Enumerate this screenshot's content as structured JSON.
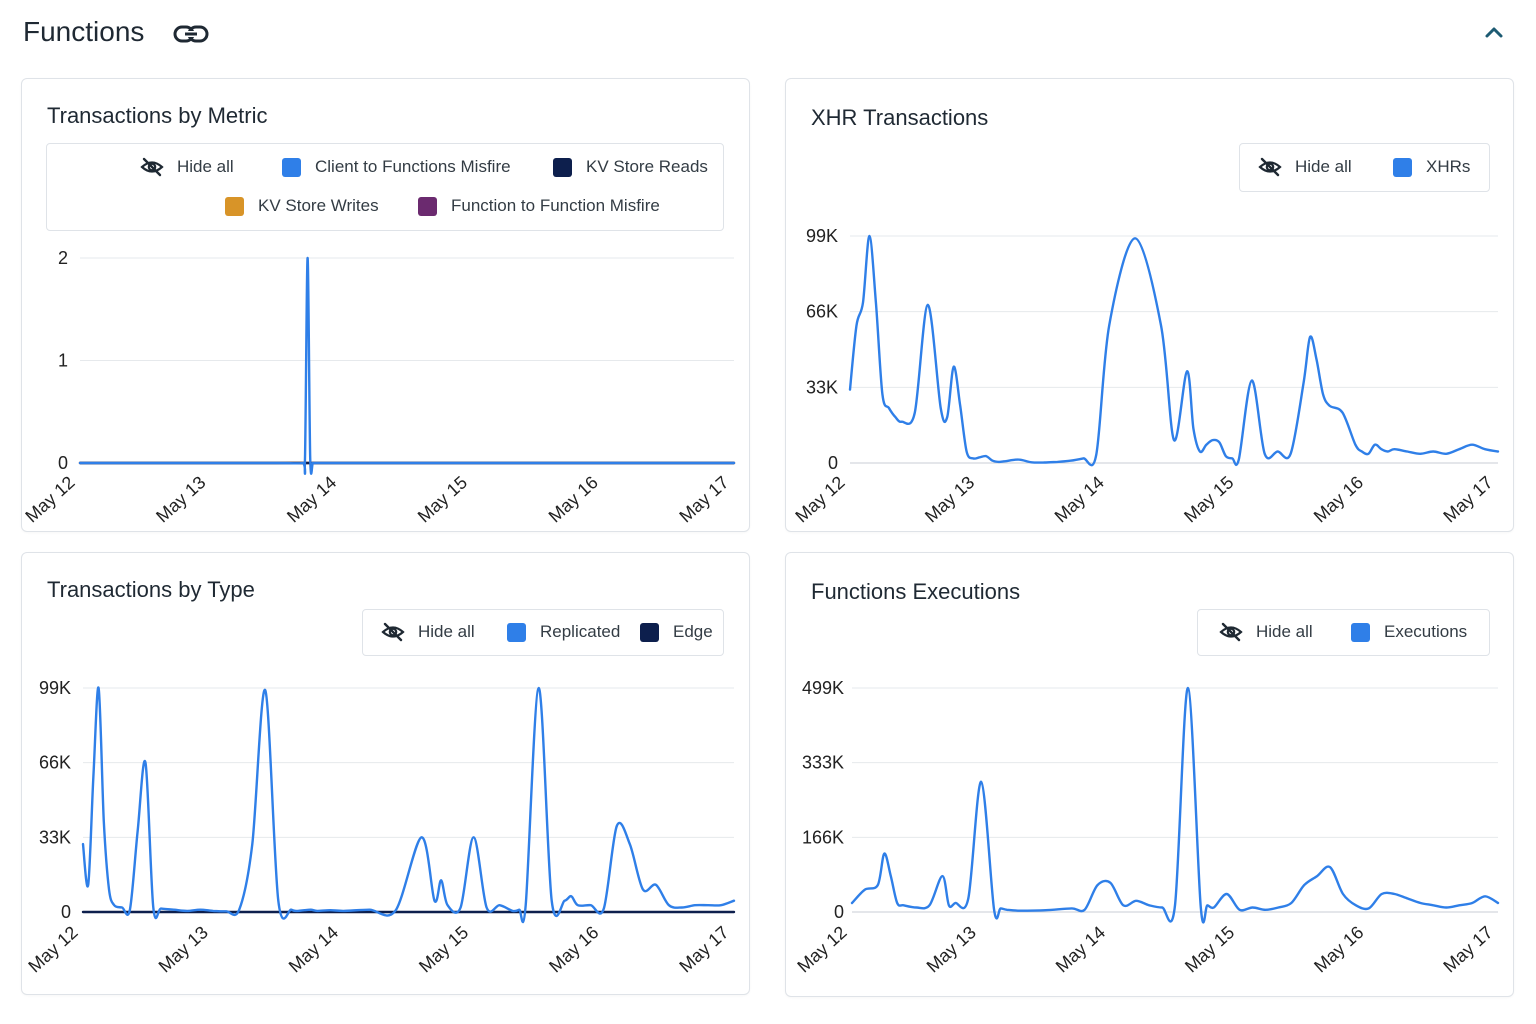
{
  "header": {
    "title": "Functions",
    "link_icon": "link-icon",
    "collapse_icon": "chevron-up-icon"
  },
  "colors": {
    "blue": "#2f7fe8",
    "navy": "#0d1f4d",
    "orange": "#d89428",
    "purple": "#6b2a6f",
    "accent": "#1d5b73"
  },
  "cards": {
    "metric": {
      "title": "Transactions by Metric",
      "legend": {
        "hide_all": "Hide all",
        "items": [
          "Client to Functions Misfire",
          "KV Store Reads",
          "KV Store Writes",
          "Function to Function Misfire"
        ]
      }
    },
    "xhr": {
      "title": "XHR Transactions",
      "legend": {
        "hide_all": "Hide all",
        "items": [
          "XHRs"
        ]
      }
    },
    "type": {
      "title": "Transactions by Type",
      "legend": {
        "hide_all": "Hide all",
        "items": [
          "Replicated",
          "Edge"
        ]
      }
    },
    "exec": {
      "title": "Functions Executions",
      "legend": {
        "hide_all": "Hide all",
        "items": [
          "Executions"
        ]
      }
    }
  },
  "chart_data": [
    {
      "id": "metric",
      "type": "line",
      "title": "Transactions by Metric",
      "x_tick_labels": [
        "May 12",
        "May 13",
        "May 14",
        "May 15",
        "May 16",
        "May 17"
      ],
      "y_tick_labels": [
        "0",
        "1",
        "2"
      ],
      "ylim": [
        0,
        2
      ],
      "grid": true,
      "legend_position": "top",
      "x": [
        12.0,
        12.5,
        13.0,
        13.5,
        13.7,
        13.72,
        13.74,
        13.76,
        13.78,
        13.8,
        14.0,
        14.5,
        15.0,
        15.5,
        16.0,
        16.5,
        17.0
      ],
      "series": [
        {
          "name": "Client to Functions Misfire",
          "color": "#2f7fe8",
          "values": [
            0,
            0,
            0,
            0,
            0,
            0.05,
            2.0,
            0.05,
            0,
            0,
            0,
            0,
            0,
            0,
            0,
            0,
            0
          ]
        },
        {
          "name": "KV Store Reads",
          "color": "#0d1f4d",
          "values": [
            0,
            0,
            0,
            0,
            0,
            0,
            0,
            0,
            0,
            0,
            0,
            0,
            0,
            0,
            0,
            0,
            0
          ]
        },
        {
          "name": "KV Store Writes",
          "color": "#d89428",
          "values": [
            0,
            0,
            0,
            0,
            0,
            0,
            0,
            0,
            0,
            0,
            0,
            0,
            0,
            0,
            0,
            0,
            0
          ]
        },
        {
          "name": "Function to Function Misfire",
          "color": "#6b2a6f",
          "values": [
            0,
            0,
            0,
            0,
            0,
            0,
            0,
            0,
            0,
            0,
            0,
            0,
            0,
            0,
            0,
            0,
            0
          ]
        }
      ]
    },
    {
      "id": "xhr",
      "type": "line",
      "title": "XHR Transactions",
      "x_tick_labels": [
        "May 12",
        "May 13",
        "May 14",
        "May 15",
        "May 16",
        "May 17"
      ],
      "y_tick_labels": [
        "0",
        "33K",
        "66K",
        "99K"
      ],
      "ylim": [
        0,
        99000
      ],
      "grid": true,
      "legend_position": "top-right",
      "x": [
        12.0,
        12.05,
        12.1,
        12.15,
        12.2,
        12.25,
        12.3,
        12.35,
        12.4,
        12.5,
        12.6,
        12.7,
        12.75,
        12.8,
        12.85,
        12.9,
        12.95,
        13.0,
        13.05,
        13.1,
        13.15,
        13.2,
        13.3,
        13.4,
        13.5,
        13.6,
        13.7,
        13.8,
        13.9,
        14.0,
        14.2,
        14.4,
        14.5,
        14.6,
        14.65,
        14.7,
        14.75,
        14.8,
        14.85,
        14.9,
        14.95,
        15.0,
        15.1,
        15.2,
        15.3,
        15.4,
        15.5,
        15.55,
        15.6,
        15.65,
        15.7,
        15.8,
        15.9,
        15.95,
        16.0,
        16.05,
        16.1,
        16.15,
        16.2,
        16.3,
        16.4,
        16.5,
        16.6,
        16.7,
        16.8,
        16.9,
        17.0
      ],
      "series": [
        {
          "name": "XHRs",
          "color": "#2f7fe8",
          "values": [
            32000,
            60000,
            70000,
            99000,
            70000,
            30000,
            24000,
            20000,
            18000,
            22000,
            69000,
            24000,
            20000,
            42000,
            25000,
            5000,
            2000,
            2500,
            3000,
            1000,
            500,
            800,
            1500,
            300,
            200,
            500,
            1000,
            2000,
            3500,
            60000,
            98000,
            60000,
            10000,
            40000,
            15000,
            5000,
            8000,
            10000,
            9000,
            3000,
            2000,
            1500,
            36000,
            4000,
            5000,
            4000,
            35000,
            55000,
            45000,
            30000,
            25000,
            22000,
            8000,
            5000,
            4000,
            8000,
            6000,
            5000,
            6000,
            5000,
            4000,
            5000,
            4000,
            6000,
            8000,
            6000,
            5000
          ]
        }
      ]
    },
    {
      "id": "type",
      "type": "line",
      "title": "Transactions by Type",
      "x_tick_labels": [
        "May 12",
        "May 13",
        "May 14",
        "May 15",
        "May 16",
        "May 17"
      ],
      "y_tick_labels": [
        "0",
        "33K",
        "66K",
        "99K"
      ],
      "ylim": [
        0,
        99000
      ],
      "grid": true,
      "legend_position": "top-right",
      "x": [
        12.0,
        12.04,
        12.08,
        12.12,
        12.16,
        12.2,
        12.24,
        12.3,
        12.36,
        12.42,
        12.48,
        12.54,
        12.6,
        12.7,
        12.8,
        12.9,
        13.0,
        13.1,
        13.2,
        13.3,
        13.4,
        13.5,
        13.6,
        13.65,
        13.7,
        13.75,
        13.8,
        13.9,
        14.0,
        14.2,
        14.4,
        14.6,
        14.7,
        14.75,
        14.8,
        14.9,
        15.0,
        15.1,
        15.2,
        15.3,
        15.35,
        15.4,
        15.5,
        15.6,
        15.7,
        15.75,
        15.8,
        15.9,
        16.0,
        16.1,
        16.2,
        16.3,
        16.4,
        16.5,
        16.6,
        16.7,
        16.8,
        16.9,
        17.0
      ],
      "series": [
        {
          "name": "Replicated",
          "color": "#2f7fe8",
          "values": [
            30000,
            12000,
            60000,
            99000,
            40000,
            10000,
            3000,
            2000,
            1000,
            36000,
            66000,
            2000,
            1500,
            1000,
            500,
            1000,
            500,
            300,
            1000,
            30000,
            98000,
            5000,
            1000,
            500,
            800,
            1000,
            500,
            800,
            500,
            1000,
            600,
            33000,
            5000,
            14000,
            3000,
            2000,
            33000,
            2000,
            3000,
            500,
            1000,
            3000,
            99000,
            5000,
            5000,
            7000,
            3000,
            3000,
            1500,
            38000,
            30000,
            10000,
            12000,
            3000,
            2000,
            3000,
            3000,
            3000,
            5000
          ]
        },
        {
          "name": "Edge",
          "color": "#0d1f4d",
          "values": [
            0,
            0,
            0,
            0,
            0,
            0,
            0,
            0,
            0,
            0,
            0,
            0,
            0,
            0,
            0,
            0,
            0,
            0,
            0,
            0,
            0,
            0,
            0,
            0,
            0,
            0,
            0,
            0,
            0,
            0,
            0,
            0,
            0,
            0,
            0,
            0,
            0,
            0,
            0,
            0,
            0,
            0,
            0,
            0,
            0,
            0,
            0,
            0,
            0,
            0,
            0,
            0,
            0,
            0,
            0,
            0,
            0,
            0,
            0
          ]
        }
      ]
    },
    {
      "id": "exec",
      "type": "line",
      "title": "Functions Executions",
      "x_tick_labels": [
        "May 12",
        "May 13",
        "May 14",
        "May 15",
        "May 16",
        "May 17"
      ],
      "y_tick_labels": [
        "0",
        "166K",
        "333K",
        "499K"
      ],
      "ylim": [
        0,
        499000
      ],
      "grid": true,
      "legend_position": "top-right",
      "x": [
        12.0,
        12.1,
        12.2,
        12.25,
        12.3,
        12.35,
        12.4,
        12.5,
        12.6,
        12.7,
        12.75,
        12.8,
        12.9,
        13.0,
        13.1,
        13.15,
        13.2,
        13.3,
        13.5,
        13.7,
        13.8,
        13.9,
        14.0,
        14.1,
        14.2,
        14.3,
        14.4,
        14.5,
        14.6,
        14.7,
        14.75,
        14.8,
        14.9,
        15.0,
        15.1,
        15.2,
        15.3,
        15.4,
        15.5,
        15.6,
        15.7,
        15.8,
        15.9,
        16.0,
        16.1,
        16.2,
        16.3,
        16.4,
        16.5,
        16.6,
        16.7,
        16.8,
        16.9,
        17.0
      ],
      "series": [
        {
          "name": "Executions",
          "color": "#2f7fe8",
          "values": [
            20000,
            50000,
            60000,
            130000,
            80000,
            20000,
            15000,
            10000,
            15000,
            80000,
            15000,
            20000,
            30000,
            290000,
            5000,
            8000,
            5000,
            3000,
            4000,
            8000,
            5000,
            60000,
            65000,
            15000,
            25000,
            15000,
            10000,
            15000,
            499000,
            10000,
            15000,
            10000,
            40000,
            5000,
            10000,
            5000,
            10000,
            20000,
            60000,
            80000,
            100000,
            40000,
            15000,
            8000,
            40000,
            40000,
            30000,
            20000,
            15000,
            10000,
            15000,
            20000,
            35000,
            20000
          ]
        }
      ]
    }
  ]
}
